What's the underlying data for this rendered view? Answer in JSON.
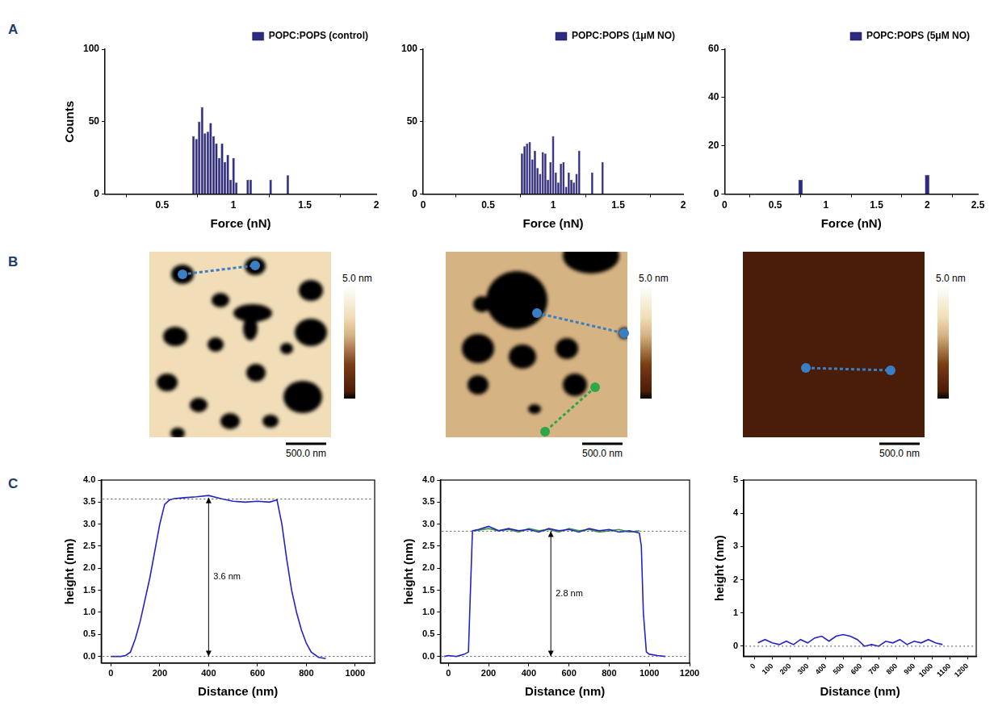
{
  "panel_labels": [
    "A",
    "B",
    "C"
  ],
  "chart_data": [
    {
      "type": "histogram",
      "xlabel": "Force (nN)",
      "ylabel": "Counts",
      "bins": [
        0.71,
        0.73,
        0.75,
        0.77,
        0.79,
        0.81,
        0.83,
        0.85,
        0.87,
        0.89,
        0.91,
        0.93,
        0.95,
        0.97,
        0.99,
        1.01,
        1.03,
        1.05,
        1.07,
        1.09,
        1.11,
        1.13,
        1.15,
        1.17,
        1.19,
        1.21,
        1.23,
        1.25,
        1.27,
        1.29,
        1.31,
        1.33,
        1.35,
        1.37,
        1.39,
        1.41
      ],
      "series": [
        {
          "name": "POPC:POPS (control)",
          "color": "#2d2a80",
          "values": [
            40,
            38,
            50,
            60,
            42,
            43,
            49,
            40,
            35,
            25,
            35,
            22,
            27,
            10,
            25,
            8,
            0,
            0,
            0,
            10,
            10,
            0,
            0,
            0,
            0,
            0,
            0,
            10,
            0,
            0,
            0,
            0,
            0,
            13,
            0
          ]
        }
      ],
      "xlim": [
        0.1,
        2
      ],
      "xticks": [
        0.5,
        1,
        1.5,
        2
      ],
      "ylim": [
        0,
        100
      ],
      "yticks": [
        0,
        50,
        100
      ],
      "grid": false,
      "legend": "top right"
    },
    {
      "type": "histogram",
      "xlabel": "Force (nN)",
      "bins": [
        0.75,
        0.77,
        0.79,
        0.81,
        0.83,
        0.85,
        0.87,
        0.89,
        0.91,
        0.93,
        0.95,
        0.97,
        0.99,
        1.01,
        1.03,
        1.05,
        1.07,
        1.09,
        1.11,
        1.13,
        1.15,
        1.17,
        1.19,
        1.21,
        1.23,
        1.25,
        1.27,
        1.29,
        1.31,
        1.33,
        1.35,
        1.37,
        1.39,
        1.41
      ],
      "series": [
        {
          "name": "POPC:POPS (1μM NO)",
          "color": "#2d2a80",
          "values": [
            28,
            33,
            35,
            36,
            24,
            30,
            18,
            14,
            29,
            28,
            10,
            22,
            40,
            15,
            8,
            21,
            22,
            5,
            15,
            10,
            8,
            14,
            30,
            0,
            0,
            0,
            0,
            15,
            0,
            0,
            0,
            22,
            0
          ]
        }
      ],
      "xlim": [
        0,
        2
      ],
      "xticks": [
        0,
        0.5,
        1,
        1.5,
        2
      ],
      "ylim": [
        0,
        100
      ],
      "yticks": [
        0,
        50,
        100
      ],
      "grid": false,
      "legend": "top right"
    },
    {
      "type": "histogram",
      "xlabel": "Force (nN)",
      "bins": [
        0.725,
        0.775,
        0.825,
        0.875,
        0.925,
        0.975,
        1.025,
        1.075,
        1.125,
        1.175,
        1.225,
        1.275,
        1.325,
        1.375,
        1.425,
        1.475,
        1.525,
        1.575,
        1.625,
        1.675,
        1.725,
        1.775,
        1.825,
        1.875,
        1.925,
        1.975,
        2.025
      ],
      "series": [
        {
          "name": "POPC:POPS (5μM NO)",
          "color": "#2d2a80",
          "values": [
            6,
            0,
            0,
            0,
            0,
            0,
            0,
            0,
            0,
            0,
            0,
            0,
            0,
            0,
            0,
            0,
            0,
            0,
            0,
            0,
            0,
            0,
            0,
            0,
            0,
            8
          ]
        }
      ],
      "xlim": [
        0,
        2.5
      ],
      "xticks": [
        0,
        0.5,
        1,
        1.5,
        2,
        2.5
      ],
      "ylim": [
        0,
        60
      ],
      "yticks": [
        0,
        20,
        40,
        60
      ],
      "grid": false,
      "legend": "top right"
    },
    {
      "type": "image",
      "extent_nm": [
        2250,
        2300
      ],
      "background_height": 3.6,
      "domain_height": 0,
      "domains": [
        {
          "x": 410,
          "y": 280,
          "rx": 140,
          "ry": 120
        },
        {
          "x": 1310,
          "y": 180,
          "rx": 130,
          "ry": 110
        },
        {
          "x": 880,
          "y": 600,
          "rx": 110,
          "ry": 90
        },
        {
          "x": 1280,
          "y": 760,
          "rx": 240,
          "ry": 110
        },
        {
          "x": 1250,
          "y": 950,
          "rx": 90,
          "ry": 150
        },
        {
          "x": 2000,
          "y": 480,
          "rx": 150,
          "ry": 130
        },
        {
          "x": 320,
          "y": 1050,
          "rx": 150,
          "ry": 120
        },
        {
          "x": 820,
          "y": 1150,
          "rx": 100,
          "ry": 90
        },
        {
          "x": 2000,
          "y": 1000,
          "rx": 200,
          "ry": 170
        },
        {
          "x": 1700,
          "y": 1200,
          "rx": 80,
          "ry": 70
        },
        {
          "x": 220,
          "y": 1620,
          "rx": 130,
          "ry": 110
        },
        {
          "x": 610,
          "y": 1900,
          "rx": 110,
          "ry": 90
        },
        {
          "x": 1320,
          "y": 1500,
          "rx": 120,
          "ry": 110
        },
        {
          "x": 1000,
          "y": 2100,
          "rx": 120,
          "ry": 100
        },
        {
          "x": 1900,
          "y": 1800,
          "rx": 240,
          "ry": 200
        },
        {
          "x": 1500,
          "y": 2100,
          "rx": 100,
          "ry": 80
        },
        {
          "x": 350,
          "y": 2250,
          "rx": 90,
          "ry": 70
        }
      ],
      "colorbar": {
        "range": [
          0,
          5
        ],
        "ticks": [
          {
            "value": 5,
            "label": "5.0 nm"
          }
        ]
      },
      "scale_bar": {
        "length": 500,
        "label": "500.0 nm"
      },
      "profile_lines": [
        {
          "from": [
            410,
            280
          ],
          "to": [
            1310,
            170
          ],
          "color": "#3a7fc4"
        }
      ]
    },
    {
      "type": "image",
      "extent_nm": [
        2250,
        2300
      ],
      "background_height": 2.8,
      "domain_height": 0,
      "domains": [
        {
          "x": 880,
          "y": 600,
          "rx": 380,
          "ry": 360
        },
        {
          "x": 1800,
          "y": 50,
          "rx": 350,
          "ry": 220
        },
        {
          "x": 450,
          "y": 650,
          "rx": 110,
          "ry": 100
        },
        {
          "x": 400,
          "y": 1200,
          "rx": 200,
          "ry": 180
        },
        {
          "x": 950,
          "y": 1300,
          "rx": 170,
          "ry": 150
        },
        {
          "x": 1500,
          "y": 1200,
          "rx": 140,
          "ry": 130
        },
        {
          "x": 1600,
          "y": 1650,
          "rx": 150,
          "ry": 140
        },
        {
          "x": 400,
          "y": 1650,
          "rx": 130,
          "ry": 120
        },
        {
          "x": 2210,
          "y": 1010,
          "rx": 70,
          "ry": 70
        },
        {
          "x": 1100,
          "y": 1950,
          "rx": 80,
          "ry": 60
        }
      ],
      "colorbar": {
        "range": [
          0,
          5
        ],
        "ticks": [
          {
            "value": 5,
            "label": "5.0 nm"
          }
        ]
      },
      "scale_bar": {
        "length": 500,
        "label": "500.0 nm"
      },
      "profile_lines": [
        {
          "from": [
            1130,
            760
          ],
          "to": [
            2210,
            1010
          ],
          "color": "#3a7fc4"
        },
        {
          "from": [
            1850,
            1680
          ],
          "to": [
            1230,
            2230
          ],
          "color": "#2ca84a"
        }
      ]
    },
    {
      "type": "image",
      "extent_nm": [
        2250,
        2300
      ],
      "background_height": 0.3,
      "domain_height": 0,
      "domains": [],
      "colorbar": {
        "range": [
          0,
          5
        ],
        "ticks": [
          {
            "value": 5,
            "label": "5.0 nm"
          }
        ]
      },
      "scale_bar": {
        "length": 500,
        "label": "500.0 nm"
      },
      "profile_lines": [
        {
          "from": [
            780,
            1440
          ],
          "to": [
            1830,
            1470
          ],
          "color": "#3a7fc4"
        }
      ]
    },
    {
      "type": "line",
      "xlabel": "Distance (nm)",
      "ylabel": "height (nm)",
      "series": [
        {
          "color": "#2323c8",
          "x": [
            0,
            20,
            40,
            60,
            80,
            100,
            120,
            140,
            160,
            180,
            200,
            220,
            240,
            260,
            300,
            350,
            400,
            450,
            500,
            550,
            600,
            650,
            680,
            700,
            720,
            740,
            760,
            780,
            800,
            820,
            850,
            880
          ],
          "values": [
            0,
            0,
            0,
            0.02,
            0.1,
            0.4,
            0.8,
            1.3,
            1.8,
            2.4,
            3.0,
            3.45,
            3.55,
            3.58,
            3.6,
            3.62,
            3.65,
            3.58,
            3.52,
            3.5,
            3.52,
            3.5,
            3.55,
            3.0,
            2.2,
            1.5,
            1.0,
            0.6,
            0.3,
            0.1,
            -0.02,
            -0.05
          ]
        }
      ],
      "xlim": [
        -40,
        1080
      ],
      "xticks": [
        0,
        200,
        400,
        600,
        800,
        1000
      ],
      "ylim": [
        -0.15,
        4.0
      ],
      "yticks": [
        {
          "value": 0,
          "label": "0.0"
        },
        0.5,
        {
          "value": 1,
          "label": "1.0"
        },
        1.5,
        {
          "value": 2,
          "label": "2.0"
        },
        2.5,
        {
          "value": 3,
          "label": "3.0"
        },
        3.5,
        {
          "value": 4,
          "label": "4.0"
        }
      ],
      "reference_lines": [
        0,
        3.57
      ],
      "annotations": [
        {
          "text": "3.6 nm",
          "x": 400,
          "from": 0,
          "to": 3.6
        }
      ],
      "grid": false
    },
    {
      "type": "line",
      "xlabel": "Distance (nm)",
      "ylabel": "height (nm)",
      "series": [
        {
          "color": "#2323c8",
          "x": [
            -20,
            0,
            40,
            80,
            100,
            110,
            120,
            150,
            200,
            250,
            300,
            350,
            400,
            450,
            500,
            550,
            600,
            650,
            700,
            750,
            800,
            850,
            900,
            950,
            960,
            970,
            985,
            1000,
            1040,
            1080
          ],
          "values": [
            0,
            0.02,
            0,
            0.05,
            0.1,
            1.5,
            2.85,
            2.88,
            2.95,
            2.85,
            2.9,
            2.85,
            2.88,
            2.82,
            2.9,
            2.85,
            2.88,
            2.82,
            2.9,
            2.85,
            2.88,
            2.82,
            2.85,
            2.8,
            2.5,
            1.0,
            0.1,
            0.05,
            0.02,
            0
          ]
        },
        {
          "color": "#3a9a3a",
          "x": [
            130,
            200,
            250,
            300,
            350,
            400,
            450,
            500,
            550,
            600,
            650,
            700,
            750,
            800,
            850,
            900,
            950
          ],
          "values": [
            2.85,
            2.9,
            2.85,
            2.88,
            2.82,
            2.9,
            2.85,
            2.88,
            2.82,
            2.9,
            2.85,
            2.88,
            2.82,
            2.85,
            2.88,
            2.82,
            2.85
          ]
        }
      ],
      "xlim": [
        -40,
        1200
      ],
      "xticks": [
        0,
        200,
        400,
        600,
        800,
        1000,
        1200
      ],
      "ylim": [
        -0.15,
        4.0
      ],
      "yticks": [
        {
          "value": 0,
          "label": "0.0"
        },
        0.5,
        {
          "value": 1,
          "label": "1.0"
        },
        1.5,
        {
          "value": 2,
          "label": "2.0"
        },
        2.5,
        {
          "value": 3,
          "label": "3.0"
        },
        3.5,
        {
          "value": 4,
          "label": "4.0"
        }
      ],
      "reference_lines": [
        0,
        2.84
      ],
      "annotations": [
        {
          "text": "2.8 nm",
          "x": 510,
          "from": 0,
          "to": 2.84
        }
      ],
      "grid": false
    },
    {
      "type": "line",
      "xlabel": "Distance (nm)",
      "ylabel": "height (nm)",
      "series": [
        {
          "color": "#2323c8",
          "x": [
            20,
            60,
            100,
            140,
            180,
            220,
            260,
            300,
            340,
            380,
            420,
            460,
            500,
            540,
            580,
            620,
            660,
            700,
            740,
            780,
            820,
            860,
            900,
            940,
            980,
            1020,
            1060
          ],
          "values": [
            0.1,
            0.2,
            0.1,
            0.05,
            0.15,
            0.05,
            0.2,
            0.1,
            0.25,
            0.3,
            0.15,
            0.3,
            0.35,
            0.3,
            0.2,
            0,
            0.05,
            0,
            0.15,
            0.1,
            0.2,
            0.05,
            0.15,
            0.1,
            0.2,
            0.1,
            0.05
          ]
        }
      ],
      "xlim": [
        -60,
        1250
      ],
      "xticks": [
        0,
        100,
        200,
        300,
        400,
        500,
        600,
        700,
        800,
        900,
        1000,
        1100,
        1200
      ],
      "ylim": [
        -0.3,
        5
      ],
      "yticks": [
        0,
        1,
        2,
        3,
        4,
        5
      ],
      "reference_lines": [
        0
      ],
      "annotations": [],
      "grid": false
    }
  ]
}
